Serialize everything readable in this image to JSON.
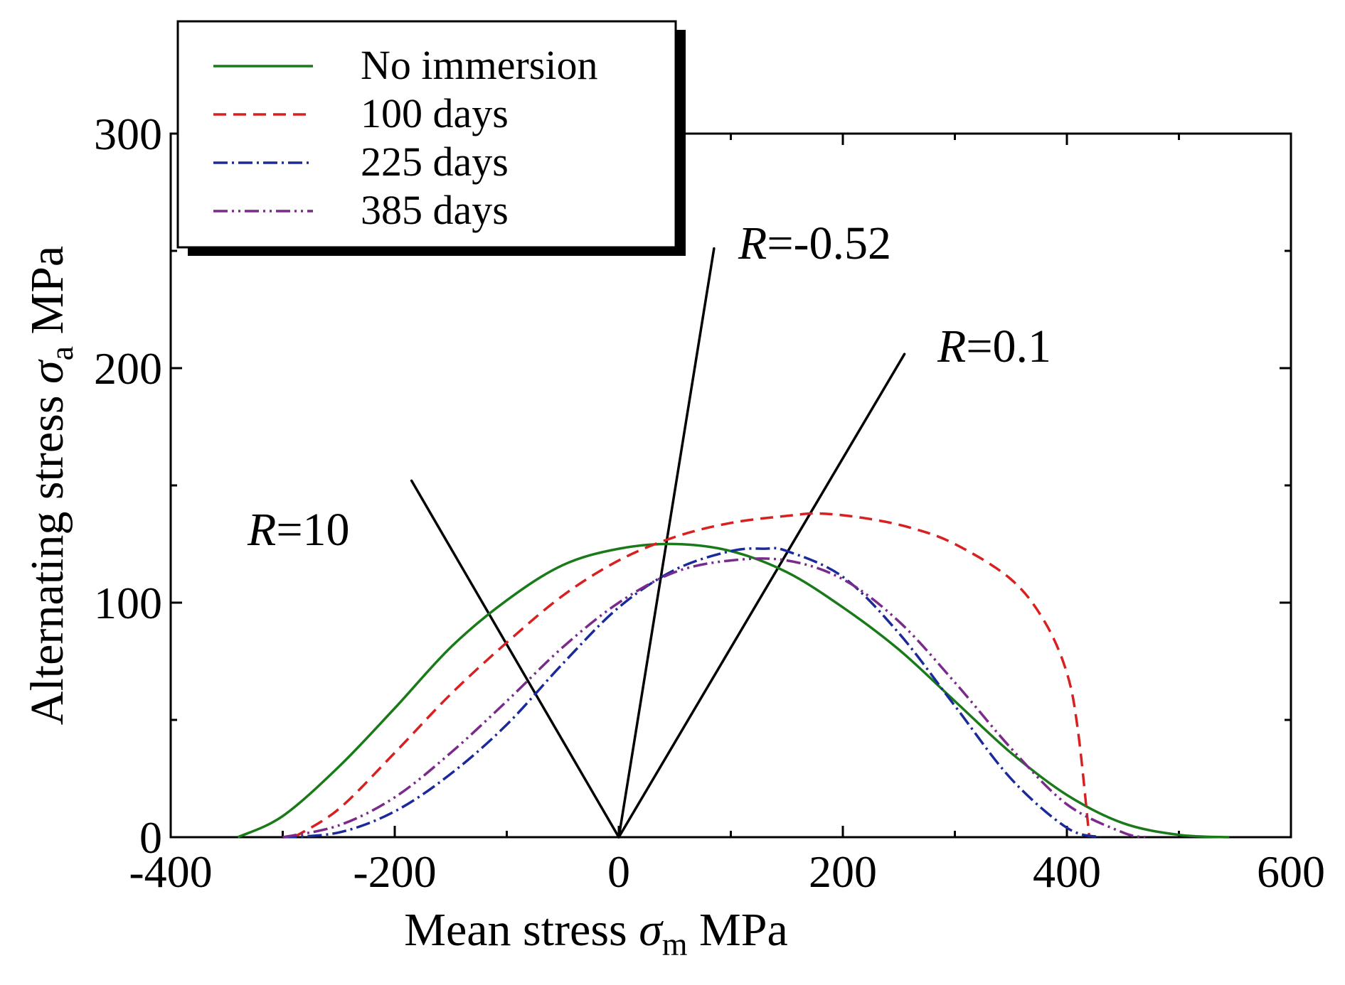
{
  "chart_data": {
    "type": "line",
    "title": "",
    "xlabel": {
      "main": "Mean stress",
      "symbol": "σ",
      "subscript": "m",
      "unit": "MPa"
    },
    "ylabel": {
      "main": "Alternating stress",
      "symbol": "σ",
      "subscript": "a",
      "unit": "MPa"
    },
    "xlim": [
      -400,
      600
    ],
    "ylim": [
      0,
      300
    ],
    "xticks": [
      -400,
      -200,
      0,
      200,
      400,
      600
    ],
    "yticks": [
      0,
      100,
      200,
      300
    ],
    "xtick_labels": [
      "-400",
      "-200",
      "0",
      "200",
      "400",
      "600"
    ],
    "ytick_labels": [
      "0",
      "100",
      "200",
      "300"
    ],
    "grid": false,
    "legend_position": "top-left",
    "series": [
      {
        "name": "No immersion",
        "color": "#1a7a1a",
        "dash": "solid",
        "x": [
          -340,
          -300,
          -250,
          -200,
          -150,
          -100,
          -50,
          0,
          50,
          100,
          150,
          200,
          250,
          300,
          350,
          400,
          450,
          500,
          545
        ],
        "y": [
          0,
          9,
          30,
          55,
          81,
          101,
          116,
          123,
          125,
          122,
          113,
          98,
          80,
          58,
          36,
          18,
          6,
          1,
          0
        ]
      },
      {
        "name": "100 days",
        "color": "#d92020",
        "dash": "dashed",
        "x": [
          -290,
          -250,
          -200,
          -150,
          -100,
          -50,
          0,
          50,
          100,
          150,
          180,
          220,
          260,
          300,
          350,
          380,
          400,
          410,
          420
        ],
        "y": [
          0,
          12,
          36,
          61,
          83,
          103,
          118,
          128,
          134,
          137,
          138,
          136,
          132,
          125,
          110,
          92,
          70,
          45,
          0
        ]
      },
      {
        "name": "225 days",
        "color": "#1a2a9a",
        "dash": "dashdot",
        "x": [
          -300,
          -250,
          -200,
          -150,
          -100,
          -50,
          0,
          50,
          100,
          130,
          150,
          200,
          250,
          300,
          350,
          400,
          430
        ],
        "y": [
          0,
          2,
          11,
          27,
          48,
          74,
          98,
          114,
          122,
          123,
          122,
          111,
          87,
          56,
          25,
          4,
          0
        ]
      },
      {
        "name": "385 days",
        "color": "#7a2a8a",
        "dash": "dashdotdot",
        "x": [
          -300,
          -250,
          -200,
          -150,
          -100,
          -50,
          0,
          50,
          100,
          150,
          200,
          250,
          300,
          350,
          400,
          450,
          470
        ],
        "y": [
          0,
          5,
          17,
          36,
          58,
          81,
          100,
          113,
          118,
          118,
          110,
          92,
          66,
          38,
          14,
          2,
          0
        ]
      }
    ],
    "annotations": [
      {
        "name": "R=10",
        "r_symbol": "R",
        "text": "=10",
        "line": {
          "x": [
            0,
            -185
          ],
          "y": [
            0,
            152
          ]
        }
      },
      {
        "name": "R=-0.52",
        "r_symbol": "R",
        "text": "=-0.52",
        "line": {
          "x": [
            0,
            85
          ],
          "y": [
            0,
            251
          ]
        }
      },
      {
        "name": "R=0.1",
        "r_symbol": "R",
        "text": "=0.1",
        "line": {
          "x": [
            0,
            255
          ],
          "y": [
            0,
            206
          ]
        }
      }
    ]
  }
}
